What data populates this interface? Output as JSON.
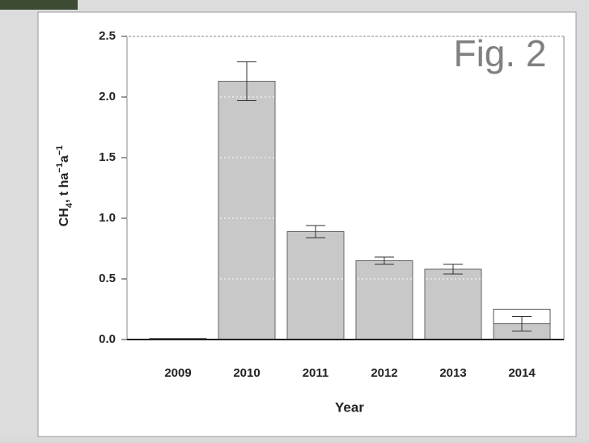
{
  "chart_data": {
    "type": "bar",
    "annotation": "Fig. 2",
    "x_label": "Year",
    "y_label": [
      "CH",
      "4",
      ", t ha",
      "−1",
      "a",
      "−1"
    ],
    "categories": [
      "2009",
      "2010",
      "2011",
      "2012",
      "2013",
      "2014"
    ],
    "values": [
      0.01,
      2.13,
      0.89,
      0.65,
      0.58,
      0.13
    ],
    "errors": [
      0,
      0.16,
      0.05,
      0.03,
      0.04,
      0.06
    ],
    "open_segment_values": [
      null,
      null,
      null,
      null,
      null,
      0.12
    ],
    "color": "#c8c8c8",
    "open_color": "#ffffff",
    "ylim": [
      0,
      2.5
    ],
    "yticks": [
      {
        "value": 0,
        "label": "0.0"
      },
      0.5,
      {
        "value": 1,
        "label": "1.0"
      },
      1.5,
      {
        "value": 2,
        "label": "2.0"
      },
      2.5
    ],
    "grid": true
  }
}
